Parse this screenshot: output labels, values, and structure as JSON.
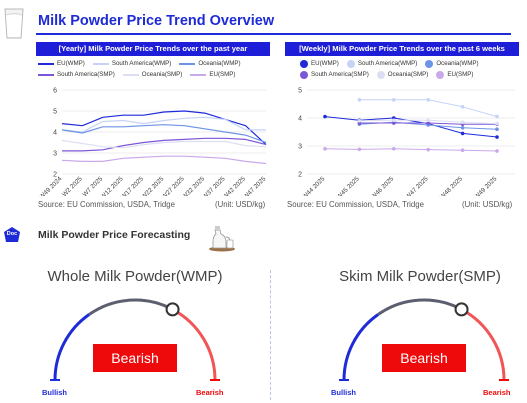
{
  "header": {
    "title": "Milk Powder Price Trend Overview",
    "milk_icon": "milk-glass-icon"
  },
  "yearly": {
    "bar_title": "[Yearly] Milk Powder Price Trends over the past year"
  },
  "weekly": {
    "bar_title": "[Weekly] Milk Powder Price Trends over the past 6 weeks"
  },
  "legend": [
    "EU(WMP)",
    "South America(WMP)",
    "Oceania(WMP)",
    "South America(SMP)",
    "Oceania(SMP)",
    "EU(SMP)"
  ],
  "source": "Source: EU Commission, USDA, Tridge",
  "unit": "(Unit: USD/kg)",
  "forecast": {
    "title": "Milk Powder Price Forecasting",
    "doc_badge": "Doc",
    "icon": "milk-jug-icon"
  },
  "gauges": [
    {
      "title": "Whole Milk Powder(WMP)",
      "label": "Bearish",
      "left_label": "Bullish",
      "right_label": "Bearish"
    },
    {
      "title": "Skim Milk Powder(SMP)",
      "label": "Bearish",
      "left_label": "Bullish",
      "right_label": "Bearish"
    }
  ],
  "colors": {
    "eu_wmp": "#1f2bd9",
    "sa_wmp": "#c6d3f7",
    "oc_wmp": "#6f93e8",
    "sa_smp": "#7b56d6",
    "oc_smp": "#dcdff2",
    "eu_smp": "#c9a8ec",
    "accent": "#1e2bd6",
    "bearish": "#ee0a0a"
  },
  "chart_data": [
    {
      "type": "line",
      "title": "[Yearly] Milk Powder Price Trends over the past year",
      "categories": [
        "W49 2024",
        "W2 2025",
        "W7 2025",
        "W12 2025",
        "W17 2025",
        "W22 2025",
        "W27 2025",
        "W32 2025",
        "W37 2025",
        "W42 2025",
        "W47 2025"
      ],
      "ylim": [
        2,
        6
      ],
      "yticks": [
        2,
        3,
        4,
        5,
        6
      ],
      "series": [
        {
          "name": "EU(WMP)",
          "values": [
            4.4,
            4.3,
            4.7,
            4.8,
            4.8,
            4.95,
            5.0,
            4.9,
            4.6,
            4.3,
            3.4
          ]
        },
        {
          "name": "South America(WMP)",
          "values": [
            4.1,
            4.0,
            4.5,
            4.55,
            4.4,
            4.55,
            4.65,
            4.7,
            4.6,
            4.1,
            4.1
          ]
        },
        {
          "name": "Oceania(WMP)",
          "values": [
            4.1,
            3.95,
            4.25,
            4.25,
            4.3,
            4.35,
            4.3,
            4.15,
            4.0,
            3.85,
            3.5
          ]
        },
        {
          "name": "South America(SMP)",
          "values": [
            3.1,
            3.1,
            3.15,
            3.35,
            3.5,
            3.6,
            3.65,
            3.7,
            3.7,
            3.65,
            3.4
          ]
        },
        {
          "name": "Oceania(SMP)",
          "values": [
            3.6,
            3.45,
            3.3,
            3.25,
            3.4,
            3.5,
            3.55,
            3.55,
            3.55,
            3.35,
            3.3
          ]
        },
        {
          "name": "EU(SMP)",
          "values": [
            2.65,
            2.6,
            2.6,
            2.75,
            2.8,
            2.85,
            2.85,
            2.8,
            2.75,
            2.6,
            2.5
          ]
        }
      ]
    },
    {
      "type": "line",
      "title": "[Weekly] Milk Powder Price Trends over the past 6 weeks",
      "categories": [
        "W44 2025",
        "W45 2025",
        "W46 2025",
        "W47 2025",
        "W48 2025",
        "W49 2025"
      ],
      "ylim": [
        2,
        5
      ],
      "yticks": [
        2,
        3,
        4,
        5
      ],
      "series": [
        {
          "name": "EU(WMP)",
          "values": [
            4.05,
            3.92,
            4.0,
            3.8,
            3.45,
            3.32
          ]
        },
        {
          "name": "South America(WMP)",
          "values": [
            null,
            4.65,
            4.65,
            4.65,
            4.4,
            4.05
          ]
        },
        {
          "name": "Oceania(WMP)",
          "values": [
            null,
            3.78,
            3.85,
            3.75,
            3.65,
            3.6
          ]
        },
        {
          "name": "South America(SMP)",
          "values": [
            null,
            3.82,
            3.82,
            3.82,
            3.78,
            3.78
          ]
        },
        {
          "name": "Oceania(SMP)",
          "values": [
            null,
            3.9,
            3.92,
            3.92,
            3.85,
            3.8
          ]
        },
        {
          "name": "EU(SMP)",
          "values": [
            2.9,
            2.88,
            2.9,
            2.87,
            2.85,
            2.82
          ]
        }
      ]
    }
  ]
}
